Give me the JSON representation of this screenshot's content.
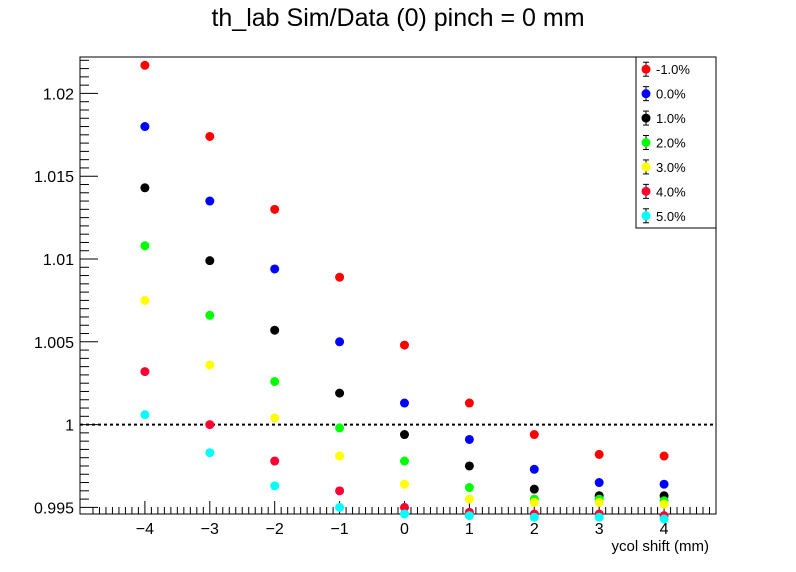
{
  "chart_data": {
    "type": "scatter",
    "title": "th_lab Sim/Data (0) pinch = 0 mm",
    "xlabel": "ycol shift (mm)",
    "ylabel": "",
    "xlim": [
      -5.0,
      4.8
    ],
    "ylim": [
      0.9946,
      1.0222
    ],
    "x": [
      -4,
      -3,
      -2,
      -1,
      0,
      1,
      2,
      3,
      4
    ],
    "x_ticks": [
      "−4",
      "−3",
      "−2",
      "−1",
      "0",
      "1",
      "2",
      "3",
      "4"
    ],
    "y_ticks": [
      "0.995",
      "1",
      "1.005",
      "1.01",
      "1.015",
      "1.02"
    ],
    "reference_line": {
      "y": 1.0,
      "style": "dotted"
    },
    "grid": false,
    "legend_position": "top-right",
    "series": [
      {
        "name": "-1.0%",
        "color": "#ff0000",
        "values": [
          1.0217,
          1.0174,
          1.013,
          1.0089,
          1.0048,
          1.0013,
          0.9994,
          0.9982,
          0.9981
        ]
      },
      {
        "name": "0.0%",
        "color": "#0000ff",
        "values": [
          1.018,
          1.0135,
          1.0094,
          1.005,
          1.0013,
          0.9991,
          0.9973,
          0.9965,
          0.9964
        ]
      },
      {
        "name": "1.0%",
        "color": "#000000",
        "values": [
          1.0143,
          1.0099,
          1.0057,
          1.0019,
          0.9994,
          0.9975,
          0.9961,
          0.9957,
          0.9957
        ]
      },
      {
        "name": "2.0%",
        "color": "#00ff00",
        "values": [
          1.0108,
          1.0066,
          1.0026,
          0.9998,
          0.9978,
          0.9962,
          0.9955,
          0.9955,
          0.9954
        ]
      },
      {
        "name": "3.0%",
        "color": "#ffff00",
        "values": [
          1.0075,
          1.0036,
          1.0004,
          0.9981,
          0.9964,
          0.9955,
          0.9953,
          0.9953,
          0.9952
        ]
      },
      {
        "name": "4.0%",
        "color": "#ff0033",
        "values": [
          1.0032,
          1.0,
          0.9978,
          0.996,
          0.995,
          0.9947,
          0.9946,
          0.9946,
          0.9945
        ]
      },
      {
        "name": "5.0%",
        "color": "#00ffff",
        "values": [
          1.0006,
          0.9983,
          0.9963,
          0.995,
          0.9946,
          0.9945,
          0.9944,
          0.9944,
          0.9943
        ]
      }
    ]
  }
}
